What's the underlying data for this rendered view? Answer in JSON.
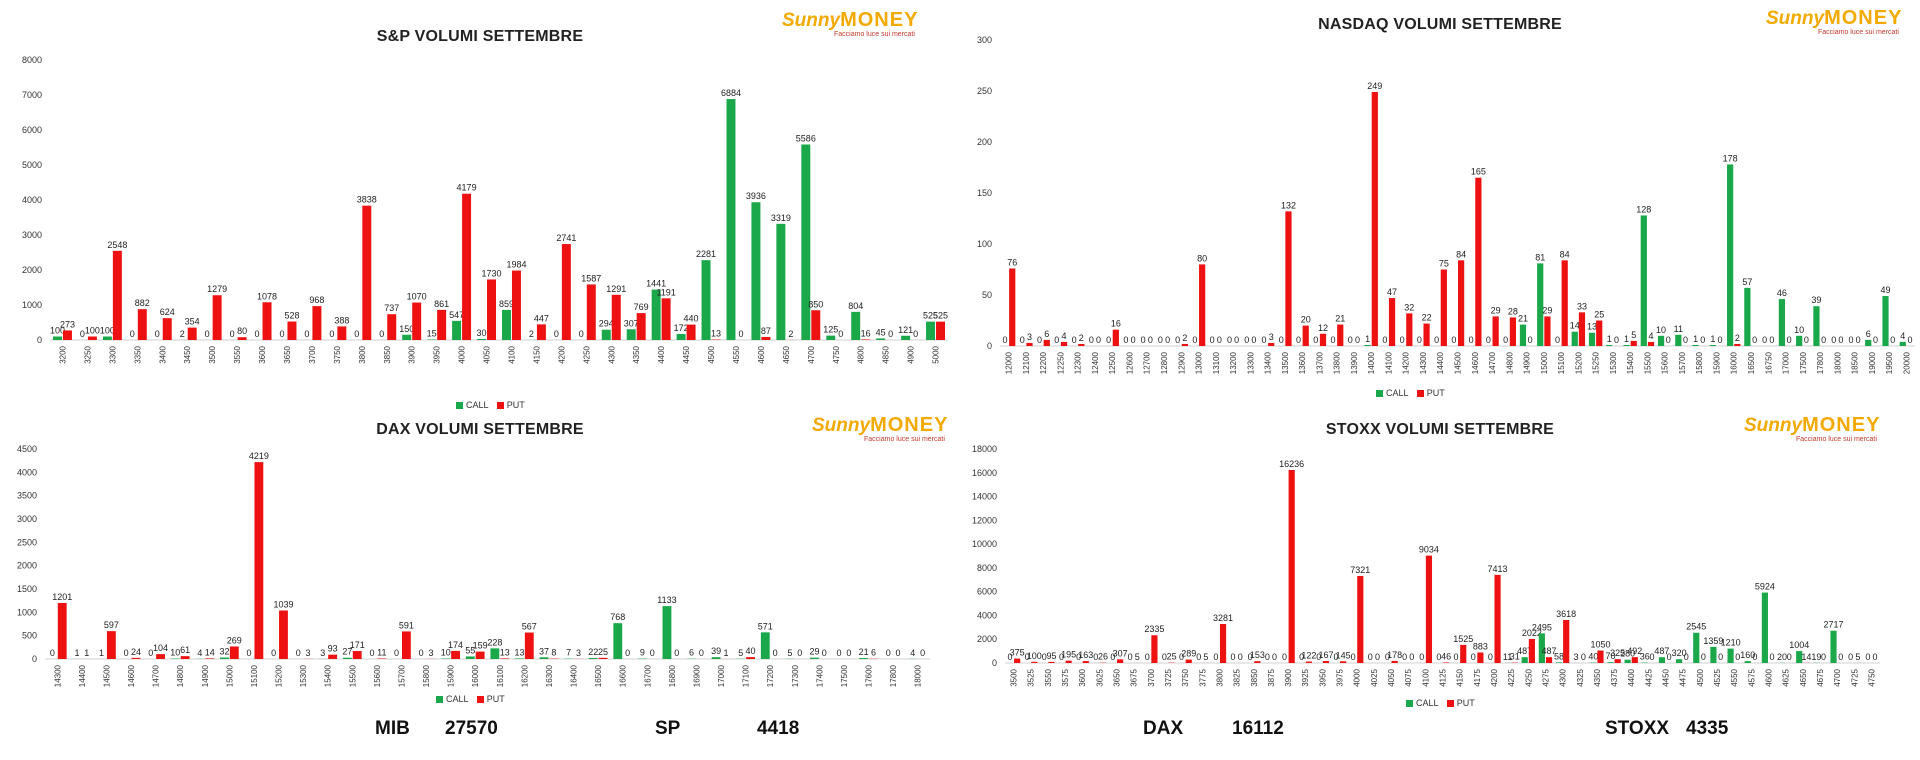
{
  "colors": {
    "call": "#1aa84a",
    "put": "#ee1111",
    "axis": "#d0d0d0",
    "text": "#333333"
  },
  "logo": {
    "brand_sunny": "Sunny",
    "brand_money": "MONEY",
    "tagline": "Facciamo luce sui mercati"
  },
  "legend": {
    "call": "CALL",
    "put": "PUT"
  },
  "prices": [
    {
      "name": "MIB",
      "value": "27570"
    },
    {
      "name": "SP",
      "value": "4418"
    },
    {
      "name": "DAX",
      "value": "16112"
    },
    {
      "name": "STOXX",
      "value": "4335"
    }
  ],
  "chart_data": [
    {
      "id": "sp",
      "type": "bar",
      "title": "S&P VOLUMI SETTEMBRE",
      "ylim": [
        0,
        8000
      ],
      "yticks": [
        0,
        1000,
        2000,
        3000,
        4000,
        5000,
        6000,
        7000,
        8000
      ],
      "legend_position": "bottom",
      "categories": [
        "3200",
        "3250",
        "3300",
        "3350",
        "3400",
        "3450",
        "3500",
        "3550",
        "3600",
        "3650",
        "3700",
        "3750",
        "3800",
        "3850",
        "3900",
        "3950",
        "4000",
        "4050",
        "4100",
        "4150",
        "4200",
        "4250",
        "4300",
        "4350",
        "4400",
        "4450",
        "4500",
        "4550",
        "4600",
        "4650",
        "4700",
        "4750",
        "4800",
        "4850",
        "4900",
        "5000"
      ],
      "series": [
        {
          "name": "CALL",
          "values": [
            100,
            0,
            100,
            0,
            0,
            2,
            0,
            0,
            0,
            0,
            0,
            0,
            0,
            0,
            150,
            15,
            547,
            30,
            859,
            2,
            0,
            0,
            294,
            307,
            1441,
            172,
            2281,
            6884,
            3936,
            3319,
            5586,
            125,
            804,
            45,
            121,
            525
          ]
        },
        {
          "name": "PUT",
          "values": [
            273,
            100,
            2548,
            882,
            624,
            354,
            1279,
            80,
            1078,
            528,
            968,
            388,
            3838,
            737,
            1070,
            861,
            4179,
            1730,
            1984,
            447,
            2741,
            1587,
            1291,
            769,
            1191,
            440,
            13,
            0,
            87,
            2,
            850,
            0,
            16,
            0,
            0,
            525
          ]
        }
      ]
    },
    {
      "id": "ndx",
      "type": "bar",
      "title": "NASDAQ VOLUMI SETTEMBRE",
      "ylim": [
        0,
        300
      ],
      "yticks": [
        0,
        50,
        100,
        150,
        200,
        250,
        300
      ],
      "legend_position": "bottom",
      "categories": [
        "12000",
        "12100",
        "12200",
        "12250",
        "12300",
        "12400",
        "12500",
        "12600",
        "12700",
        "12800",
        "12900",
        "13000",
        "13100",
        "13200",
        "13300",
        "13400",
        "13500",
        "13600",
        "13700",
        "13800",
        "13900",
        "14000",
        "14100",
        "14200",
        "14300",
        "14400",
        "14500",
        "14600",
        "14700",
        "14800",
        "14900",
        "15000",
        "15100",
        "15200",
        "15250",
        "15300",
        "15400",
        "15500",
        "15600",
        "15700",
        "15800",
        "15900",
        "16000",
        "16500",
        "16750",
        "17000",
        "17500",
        "17800",
        "18000",
        "18500",
        "19000",
        "19500",
        "20000"
      ],
      "series": [
        {
          "name": "CALL",
          "values": [
            0,
            0,
            0,
            0,
            0,
            0,
            0,
            0,
            0,
            0,
            0,
            0,
            0,
            0,
            0,
            0,
            0,
            0,
            0,
            0,
            0,
            1,
            0,
            0,
            0,
            0,
            0,
            0,
            0,
            0,
            21,
            81,
            0,
            14,
            13,
            1,
            1,
            128,
            10,
            11,
            1,
            1,
            178,
            57,
            0,
            46,
            10,
            39,
            0,
            0,
            6,
            49,
            4
          ]
        },
        {
          "name": "PUT",
          "values": [
            76,
            3,
            6,
            4,
            2,
            0,
            16,
            0,
            0,
            0,
            2,
            80,
            0,
            0,
            0,
            3,
            132,
            20,
            12,
            21,
            0,
            249,
            47,
            32,
            22,
            75,
            84,
            165,
            29,
            28,
            0,
            29,
            84,
            33,
            25,
            0,
            5,
            4,
            0,
            0,
            0,
            0,
            2,
            0,
            0,
            0,
            0,
            0,
            0,
            0,
            0,
            0,
            0
          ]
        }
      ]
    },
    {
      "id": "dax",
      "type": "bar",
      "title": "DAX VOLUMI SETTEMBRE",
      "ylim": [
        0,
        4500
      ],
      "yticks": [
        0,
        500,
        1000,
        1500,
        2000,
        2500,
        3000,
        3500,
        4000,
        4500
      ],
      "legend_position": "bottom",
      "categories": [
        "14300",
        "14400",
        "14500",
        "14600",
        "14700",
        "14800",
        "14900",
        "15000",
        "15100",
        "15200",
        "15300",
        "15400",
        "15500",
        "15600",
        "15700",
        "15800",
        "15900",
        "16000",
        "16100",
        "16200",
        "16300",
        "16400",
        "16500",
        "16600",
        "16700",
        "16800",
        "16900",
        "17000",
        "17100",
        "17200",
        "17300",
        "17400",
        "17500",
        "17600",
        "17800",
        "18000"
      ],
      "series": [
        {
          "name": "CALL",
          "values": [
            0,
            1,
            1,
            0,
            0,
            10,
            4,
            32,
            0,
            0,
            0,
            3,
            27,
            0,
            0,
            0,
            10,
            55,
            228,
            13,
            37,
            7,
            22,
            768,
            9,
            1133,
            6,
            39,
            5,
            571,
            5,
            29,
            0,
            21,
            0,
            4
          ]
        },
        {
          "name": "PUT",
          "values": [
            1201,
            1,
            597,
            24,
            104,
            61,
            14,
            269,
            4219,
            1039,
            3,
            93,
            171,
            11,
            591,
            3,
            174,
            159,
            13,
            567,
            8,
            3,
            25,
            0,
            0,
            0,
            0,
            1,
            40,
            0,
            0,
            0,
            0,
            6,
            0,
            0
          ]
        }
      ]
    },
    {
      "id": "stx",
      "type": "bar",
      "title": "STOXX VOLUMI SETTEMBRE",
      "ylim": [
        0,
        18000
      ],
      "yticks": [
        0,
        2000,
        4000,
        6000,
        8000,
        10000,
        12000,
        14000,
        16000,
        18000
      ],
      "legend_position": "bottom",
      "categories": [
        "3500",
        "3525",
        "3550",
        "3575",
        "3600",
        "3625",
        "3650",
        "3675",
        "3700",
        "3725",
        "3750",
        "3775",
        "3800",
        "3825",
        "3850",
        "3875",
        "3900",
        "3925",
        "3950",
        "3975",
        "4000",
        "4025",
        "4050",
        "4075",
        "4100",
        "4125",
        "4150",
        "4175",
        "4200",
        "4225",
        "4250",
        "4275",
        "4300",
        "4325",
        "4350",
        "4375",
        "4400",
        "4425",
        "4450",
        "4475",
        "4500",
        "4525",
        "4550",
        "4575",
        "4600",
        "4625",
        "4650",
        "4675",
        "4700",
        "4725",
        "4750"
      ],
      "series": [
        {
          "name": "CALL",
          "values": [
            0,
            0,
            0,
            0,
            0,
            0,
            0,
            0,
            0,
            0,
            0,
            0,
            0,
            0,
            0,
            0,
            0,
            0,
            0,
            0,
            0,
            0,
            0,
            0,
            0,
            0,
            0,
            0,
            0,
            11,
            487,
            2495,
            58,
            3,
            40,
            70,
            280,
            36,
            487,
            320,
            2545,
            1359,
            1210,
            160,
            5924,
            20,
            1004,
            19,
            2717,
            0,
            0
          ]
        },
        {
          "name": "PUT",
          "values": [
            375,
            100,
            95,
            195,
            163,
            26,
            307,
            5,
            2335,
            25,
            289,
            5,
            3281,
            0,
            153,
            0,
            16236,
            122,
            167,
            145,
            7321,
            0,
            178,
            0,
            9034,
            46,
            1525,
            883,
            7413,
            31,
            2022,
            487,
            3618,
            0,
            1050,
            325,
            492,
            0,
            0,
            0,
            0,
            0,
            0,
            0,
            0,
            0,
            14,
            0,
            0,
            5,
            0
          ]
        }
      ]
    }
  ]
}
